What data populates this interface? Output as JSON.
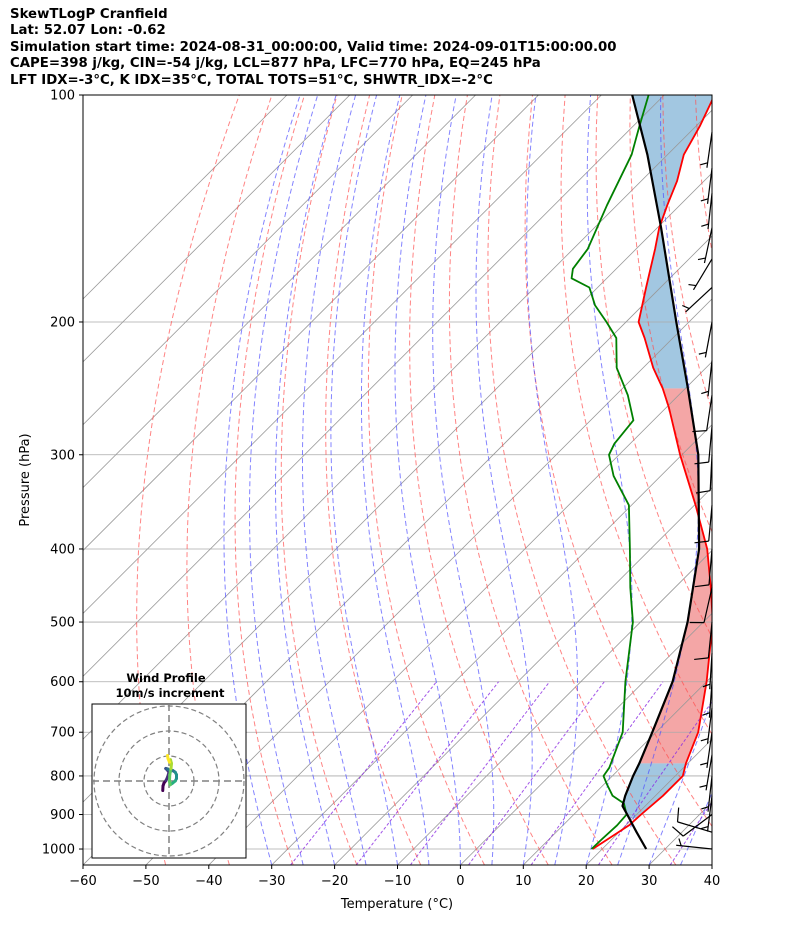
{
  "header": {
    "line1": "SkewTLogP Cranfield",
    "line2": "Lat: 52.07   Lon: -0.62",
    "line3": "Simulation start time: 2024-08-31_00:00:00, Valid time: 2024-09-01T15:00:00.00",
    "line4": "CAPE=398 j/kg, CIN=-54 j/kg, LCL=877 hPa, LFC=770 hPa, EQ=245 hPa",
    "line5": "LFT IDX=-3°C, K IDX=35°C, TOTAL TOTS=51°C, SHWTR_IDX=-2°C"
  },
  "colors": {
    "temperature": "#ff0000",
    "dewpoint": "#008000",
    "parcel": "#000000",
    "cape_fill": "#f08080",
    "cin_fill": "#7bafd4",
    "dry_adiabat": "#ff5050",
    "moist_adiabat": "#5050ff",
    "mixing_ratio": "#8b2be2",
    "isotherm": "#999999"
  },
  "chart_data": {
    "type": "line",
    "title": "",
    "xlabel": "Temperature (°C)",
    "ylabel": "Pressure (hPa)",
    "xlim": [
      -60,
      40
    ],
    "ylim": [
      1050,
      100
    ],
    "y_scale": "log",
    "x_ticks": [
      "−60",
      "−50",
      "−40",
      "−30",
      "−20",
      "−10",
      "0",
      "10",
      "20",
      "30",
      "40"
    ],
    "y_ticks": [
      "100",
      "200",
      "300",
      "400",
      "500",
      "600",
      "700",
      "800",
      "900",
      "1000"
    ],
    "grid": true,
    "series": [
      {
        "key": "temperature",
        "pressure": [
          1000,
          930,
          900,
          850,
          800,
          770,
          700,
          600,
          500,
          450,
          400,
          350,
          300,
          260,
          245,
          230,
          210,
          200,
          180,
          160,
          150,
          140,
          130,
          120,
          110,
          100
        ],
        "temperature": [
          18.5,
          20.5,
          20.7,
          21.2,
          21.2,
          19.7,
          16.7,
          10.0,
          1.5,
          -4.3,
          -11.0,
          -19.8,
          -30.3,
          -39.5,
          -43.6,
          -48.4,
          -54.5,
          -58.0,
          -62.3,
          -67.0,
          -69.7,
          -72.0,
          -74.3,
          -77.4,
          -79.4,
          -82.0
        ]
      },
      {
        "key": "dewpoint",
        "pressure": [
          1000,
          970,
          930,
          900,
          870,
          850,
          820,
          800,
          780,
          700,
          600,
          500,
          450,
          400,
          350,
          320,
          300,
          290,
          270,
          250,
          230,
          210,
          200,
          190,
          180,
          175,
          170,
          160,
          140,
          120,
          110,
          100
        ],
        "temperature": [
          18.3,
          18.4,
          18.6,
          18.4,
          16.2,
          13.2,
          10.4,
          8.6,
          8.2,
          4.7,
          -2.9,
          -11.2,
          -17.1,
          -23.3,
          -30.4,
          -37.5,
          -41.6,
          -42.5,
          -43.2,
          -48.1,
          -54.2,
          -59.0,
          -63.1,
          -67.6,
          -71.3,
          -75.6,
          -76.9,
          -77.7,
          -81.6,
          -85.7,
          -89.0,
          -92.5
        ]
      },
      {
        "key": "parcel",
        "pressure": [
          1000,
          950,
          900,
          877,
          850,
          800,
          770,
          700,
          600,
          500,
          400,
          300,
          245,
          200,
          150,
          120,
          100
        ],
        "temperature": [
          27.0,
          22.8,
          18.5,
          16.4,
          15.2,
          13.3,
          12.3,
          9.4,
          4.6,
          -2.5,
          -12.3,
          -27.4,
          -39.6,
          -52.0,
          -69.4,
          -83.2,
          -95.1
        ]
      }
    ],
    "annotations": [
      "CAPE",
      "CIN"
    ]
  },
  "hodograph": {
    "title": "Wind Profile",
    "subtitle": "10m/s increment",
    "rings_ms": [
      10,
      20,
      30
    ],
    "points_uv": [
      [
        -2.5,
        -3.8
      ],
      [
        -2.4,
        -2.0
      ],
      [
        -2.0,
        -0.8
      ],
      [
        -1.2,
        0.2
      ],
      [
        -0.6,
        1.5
      ],
      [
        0.0,
        3.5
      ],
      [
        -0.8,
        4.5
      ],
      [
        -1.3,
        5.0
      ],
      [
        -0.5,
        4.8
      ],
      [
        0.5,
        4.0
      ],
      [
        1.5,
        4.2
      ],
      [
        2.5,
        3.5
      ],
      [
        3.0,
        2.5
      ],
      [
        3.0,
        1.0
      ],
      [
        2.5,
        0.0
      ],
      [
        1.5,
        -0.8
      ],
      [
        0.5,
        -1.5
      ],
      [
        0.2,
        -0.2
      ],
      [
        0.3,
        2.5
      ],
      [
        0.8,
        5.0
      ],
      [
        1.0,
        7.0
      ],
      [
        0.6,
        8.5
      ],
      [
        0.2,
        7.5
      ],
      [
        -0.4,
        9.0
      ],
      [
        -0.6,
        10.2
      ]
    ]
  },
  "wind_barbs": [
    {
      "pressure": 1000,
      "u": 9.5,
      "v": -1.0
    },
    {
      "pressure": 950,
      "u": 10.0,
      "v": -3.0
    },
    {
      "pressure": 900,
      "u": 8.0,
      "v": 6.0
    },
    {
      "pressure": 850,
      "u": 1.0,
      "v": 8.0
    },
    {
      "pressure": 800,
      "u": 1.0,
      "v": 9.0
    },
    {
      "pressure": 750,
      "u": 1.5,
      "v": 9.0
    },
    {
      "pressure": 700,
      "u": 1.0,
      "v": 7.0
    },
    {
      "pressure": 650,
      "u": 1.0,
      "v": 8.0
    },
    {
      "pressure": 600,
      "u": 0.5,
      "v": 7.0
    },
    {
      "pressure": 550,
      "u": 0.5,
      "v": 8.0
    },
    {
      "pressure": 500,
      "u": 1.0,
      "v": 10.0
    },
    {
      "pressure": 450,
      "u": 2.5,
      "v": 11.0
    },
    {
      "pressure": 400,
      "u": 1.0,
      "v": 12.0
    },
    {
      "pressure": 350,
      "u": 1.0,
      "v": 11.0
    },
    {
      "pressure": 300,
      "u": 0.5,
      "v": 10.0
    },
    {
      "pressure": 275,
      "u": 1.0,
      "v": 11.0
    },
    {
      "pressure": 250,
      "u": 1.5,
      "v": 10.0
    },
    {
      "pressure": 225,
      "u": 1.0,
      "v": 9.0
    },
    {
      "pressure": 200,
      "u": 1.5,
      "v": 8.0
    },
    {
      "pressure": 180,
      "u": 7.0,
      "v": 6.5
    },
    {
      "pressure": 165,
      "u": 4.5,
      "v": 7.5
    },
    {
      "pressure": 150,
      "u": 1.5,
      "v": 7.0
    },
    {
      "pressure": 135,
      "u": 1.0,
      "v": 9.0
    },
    {
      "pressure": 125,
      "u": 1.0,
      "v": 8.0
    },
    {
      "pressure": 112,
      "u": 1.0,
      "v": 7.0
    }
  ]
}
